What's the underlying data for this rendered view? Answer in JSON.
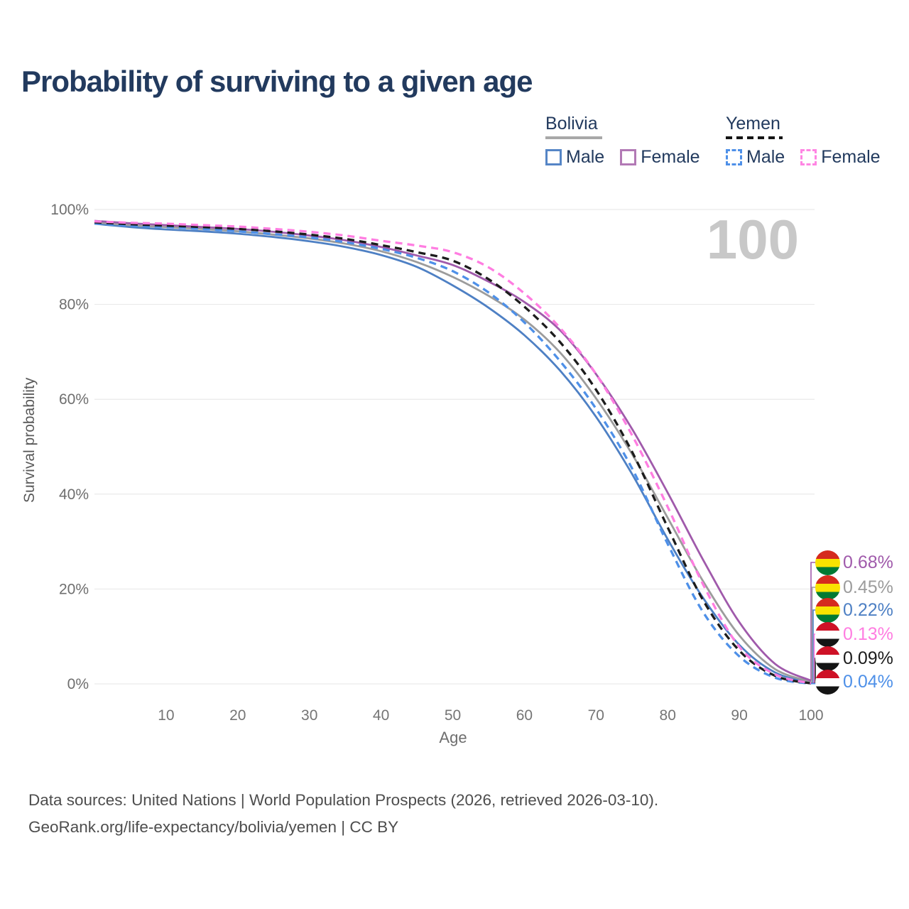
{
  "title": "Probability of surviving to a given age",
  "watermark": "100",
  "legend": {
    "groups": [
      {
        "name": "Bolivia",
        "line_style": "solid",
        "underline_color": "#a8a8a8",
        "items": [
          {
            "label": "Male",
            "color": "#5585c6"
          },
          {
            "label": "Female",
            "color": "#b279b5"
          }
        ]
      },
      {
        "name": "Yemen",
        "line_style": "dashed",
        "underline_color": "#141414",
        "items": [
          {
            "label": "Male",
            "color": "#4e90e8"
          },
          {
            "label": "Female",
            "color": "#ff85e3"
          }
        ]
      }
    ]
  },
  "chart_data": {
    "type": "line",
    "title": "Probability of surviving to a given age",
    "xlabel": "Age",
    "ylabel": "Survival probability",
    "xlim": [
      0,
      100
    ],
    "ylim": [
      0,
      100
    ],
    "grid": "horizontal",
    "legend_position": "top-right",
    "x_ticks": [
      10,
      20,
      30,
      40,
      50,
      60,
      70,
      80,
      90,
      100
    ],
    "y_ticks": [
      0,
      20,
      40,
      60,
      80,
      100
    ],
    "y_tick_labels": [
      "0%",
      "20%",
      "40%",
      "60%",
      "80%",
      "100%"
    ],
    "ages": [
      0,
      5,
      10,
      15,
      20,
      25,
      30,
      35,
      40,
      45,
      50,
      55,
      60,
      65,
      70,
      75,
      80,
      85,
      90,
      95,
      100
    ],
    "series": [
      {
        "name": "Bolivia Male",
        "country": "Bolivia",
        "sex": "Male",
        "color": "#4e80c4",
        "dashed": false,
        "values": [
          97.0,
          96.3,
          95.8,
          95.4,
          94.9,
          94.2,
          93.3,
          92.1,
          90.4,
          87.9,
          84.0,
          79.3,
          73.5,
          66.0,
          56.3,
          44.3,
          30.5,
          18.0,
          8.2,
          2.4,
          0.22
        ]
      },
      {
        "name": "Bolivia",
        "country": "Bolivia",
        "sex": "Both",
        "color": "#9c9c9c",
        "dashed": false,
        "values": [
          97.3,
          96.7,
          96.3,
          95.9,
          95.4,
          94.7,
          93.9,
          92.8,
          91.2,
          88.9,
          85.8,
          81.8,
          76.8,
          69.8,
          60.2,
          48.5,
          35.0,
          21.5,
          10.2,
          3.1,
          0.45
        ]
      },
      {
        "name": "Bolivia Female",
        "country": "Bolivia",
        "sex": "Female",
        "color": "#a05aab",
        "dashed": false,
        "values": [
          97.6,
          97.1,
          96.7,
          96.3,
          95.9,
          95.3,
          94.5,
          93.5,
          92.1,
          90.3,
          88.3,
          84.8,
          80.5,
          74.5,
          65.3,
          53.8,
          40.3,
          26.0,
          13.0,
          4.2,
          0.68
        ]
      },
      {
        "name": "Yemen Male",
        "country": "Yemen",
        "sex": "Male",
        "color": "#4e90e8",
        "dashed": true,
        "values": [
          97.1,
          96.6,
          96.3,
          95.9,
          95.4,
          94.8,
          94.1,
          93.1,
          91.7,
          89.8,
          87.0,
          82.5,
          76.2,
          68.0,
          58.0,
          45.5,
          29.5,
          15.0,
          5.8,
          1.3,
          0.04
        ]
      },
      {
        "name": "Yemen",
        "country": "Yemen",
        "sex": "Both",
        "color": "#1c1c1c",
        "dashed": true,
        "values": [
          97.3,
          96.9,
          96.6,
          96.3,
          95.9,
          95.4,
          94.7,
          93.8,
          92.5,
          91.0,
          89.2,
          85.3,
          79.5,
          72.0,
          62.0,
          49.0,
          33.0,
          17.5,
          7.0,
          1.7,
          0.09
        ]
      },
      {
        "name": "Yemen Female",
        "country": "Yemen",
        "sex": "Female",
        "color": "#ff7de1",
        "dashed": true,
        "values": [
          97.5,
          97.2,
          97.0,
          96.7,
          96.4,
          95.9,
          95.3,
          94.5,
          93.4,
          92.4,
          91.0,
          87.8,
          82.3,
          75.0,
          65.3,
          52.5,
          37.3,
          20.8,
          7.8,
          2.0,
          0.13
        ]
      }
    ],
    "end_labels": [
      {
        "value": "0.68%",
        "color": "#a05aab",
        "flag": "bolivia",
        "series": "Bolivia Female"
      },
      {
        "value": "0.45%",
        "color": "#9c9c9c",
        "flag": "bolivia",
        "series": "Bolivia"
      },
      {
        "value": "0.22%",
        "color": "#4e80c4",
        "flag": "bolivia",
        "series": "Bolivia Male"
      },
      {
        "value": "0.13%",
        "color": "#ff7de1",
        "flag": "yemen",
        "series": "Yemen Female"
      },
      {
        "value": "0.09%",
        "color": "#1c1c1c",
        "flag": "yemen",
        "series": "Yemen"
      },
      {
        "value": "0.04%",
        "color": "#4e90e8",
        "flag": "yemen",
        "series": "Yemen Male"
      }
    ]
  },
  "flag_colors": {
    "bolivia": [
      "#d52b1e",
      "#f9e300",
      "#007a33"
    ],
    "yemen": [
      "#ce1126",
      "#ffffff",
      "#141414"
    ]
  },
  "footer": {
    "line1": "Data sources: United Nations | World Population Prospects (2026, retrieved 2026-03-10).",
    "line2": "GeoRank.org/life-expectancy/bolivia/yemen | CC BY"
  }
}
